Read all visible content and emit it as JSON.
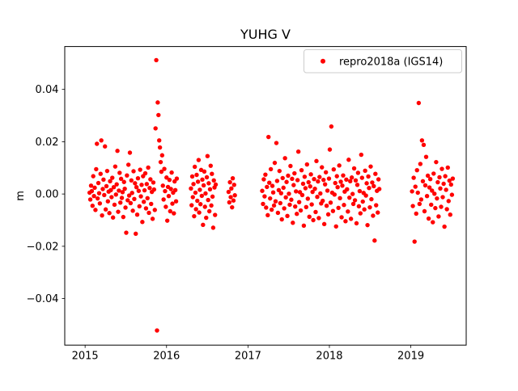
{
  "figure": {
    "background": "#ffffff",
    "frame_color": "#000000"
  },
  "chart_data": {
    "type": "scatter",
    "title": "YUHG V",
    "xlabel": "",
    "ylabel": "m",
    "series_name": "repro2018a (IGS14)",
    "marker_color": "#ff0000",
    "legend_position": "upper right",
    "grid": false,
    "xlim": [
      2014.75,
      2019.68
    ],
    "ylim": [
      -0.0578,
      0.0564
    ],
    "xticks": [
      2015,
      2016,
      2017,
      2018,
      2019
    ],
    "xtick_labels": [
      "2015",
      "2016",
      "2017",
      "2018",
      "2019"
    ],
    "yticks": [
      -0.04,
      -0.02,
      0.0,
      0.02,
      0.04
    ],
    "ytick_labels": [
      "−0.04",
      "−0.02",
      "0.00",
      "0.02",
      "0.04"
    ],
    "points": [
      [
        2015.055,
        0.0005
      ],
      [
        2015.064,
        -0.0021
      ],
      [
        2015.073,
        0.0032
      ],
      [
        2015.082,
        0.0011
      ],
      [
        2015.091,
        -0.0045
      ],
      [
        2015.1,
        0.0068
      ],
      [
        2015.109,
        -0.0008
      ],
      [
        2015.118,
        0.0024
      ],
      [
        2015.127,
        -0.0061
      ],
      [
        2015.136,
        0.0095
      ],
      [
        2015.145,
        0.0192
      ],
      [
        2015.154,
        -0.0017
      ],
      [
        2015.163,
        0.0042
      ],
      [
        2015.172,
        0.0003
      ],
      [
        2015.181,
        -0.0036
      ],
      [
        2015.19,
        0.0077
      ],
      [
        2015.199,
        0.0205
      ],
      [
        2015.208,
        -0.0082
      ],
      [
        2015.217,
        0.0019
      ],
      [
        2015.226,
        0.0055
      ],
      [
        2015.235,
        -0.0004
      ],
      [
        2015.244,
        0.0182
      ],
      [
        2015.253,
        -0.0059
      ],
      [
        2015.262,
        0.003
      ],
      [
        2015.271,
        0.0088
      ],
      [
        2015.28,
        -0.0028
      ],
      [
        2015.289,
        0.0009
      ],
      [
        2015.298,
        -0.0073
      ],
      [
        2015.307,
        0.0049
      ],
      [
        2015.316,
        0.0015
      ],
      [
        2015.325,
        -0.0012
      ],
      [
        2015.334,
        0.0062
      ],
      [
        2015.343,
        -0.009
      ],
      [
        2015.352,
        0.0026
      ],
      [
        2015.361,
        -0.0041
      ],
      [
        2015.37,
        0.0105
      ],
      [
        2015.379,
        -0.0002
      ],
      [
        2015.388,
        0.0037
      ],
      [
        2015.397,
        0.0165
      ],
      [
        2015.406,
        -0.0068
      ],
      [
        2015.415,
        0.0013
      ],
      [
        2015.424,
        0.0081
      ],
      [
        2015.433,
        -0.0033
      ],
      [
        2015.442,
        0.0058
      ],
      [
        2015.451,
        -0.0015
      ],
      [
        2015.46,
        0.0007
      ],
      [
        2015.469,
        -0.0088
      ],
      [
        2015.478,
        0.0046
      ],
      [
        2015.487,
        0.002
      ],
      [
        2015.496,
        -0.0052
      ],
      [
        2015.505,
        -0.0148
      ],
      [
        2015.514,
        0.0071
      ],
      [
        2015.523,
        -0.0024
      ],
      [
        2015.532,
        0.0112
      ],
      [
        2015.541,
        -0.0006
      ],
      [
        2015.55,
        0.0158
      ],
      [
        2015.559,
        -0.0035
      ],
      [
        2015.568,
        0.0052
      ],
      [
        2015.577,
        0.0004
      ],
      [
        2015.586,
        -0.0064
      ],
      [
        2015.595,
        0.0087
      ],
      [
        2015.604,
        -0.0019
      ],
      [
        2015.613,
        0.0041
      ],
      [
        2015.622,
        -0.0152
      ],
      [
        2015.631,
        0.0026
      ],
      [
        2015.64,
        -0.0079
      ],
      [
        2015.649,
        0.006
      ],
      [
        2015.658,
        0.0012
      ],
      [
        2015.667,
        -0.0047
      ],
      [
        2015.676,
        0.0093
      ],
      [
        2015.685,
        -0.0009
      ],
      [
        2015.694,
        0.0035
      ],
      [
        2015.703,
        -0.0107
      ],
      [
        2015.712,
        0.0068
      ],
      [
        2015.721,
        -0.003
      ],
      [
        2015.73,
        0.0014
      ],
      [
        2015.739,
        0.0079
      ],
      [
        2015.748,
        -0.0055
      ],
      [
        2015.757,
        0.0038
      ],
      [
        2015.766,
        -0.0016
      ],
      [
        2015.775,
        0.0101
      ],
      [
        2015.784,
        -0.0072
      ],
      [
        2015.793,
        0.0023
      ],
      [
        2015.802,
        0.0056
      ],
      [
        2015.811,
        -0.0038
      ],
      [
        2015.82,
        0.0008
      ],
      [
        2015.829,
        -0.0095
      ],
      [
        2015.838,
        0.0044
      ],
      [
        2015.847,
        0.0017
      ],
      [
        2015.856,
        -0.0061
      ],
      [
        2015.865,
        0.0251
      ],
      [
        2015.874,
        0.0512
      ],
      [
        2015.883,
        -0.0522
      ],
      [
        2015.892,
        0.035
      ],
      [
        2015.901,
        0.0302
      ],
      [
        2015.91,
        0.0205
      ],
      [
        2015.919,
        0.0178
      ],
      [
        2015.928,
        0.0122
      ],
      [
        2015.937,
        0.0085
      ],
      [
        2015.946,
        0.0148
      ],
      [
        2015.955,
        0.0032
      ],
      [
        2015.964,
        -0.0021
      ],
      [
        2015.973,
        0.0096
      ],
      [
        2015.982,
        0.0011
      ],
      [
        2015.991,
        -0.0049
      ],
      [
        2016.0,
        0.0063
      ],
      [
        2016.009,
        -0.0102
      ],
      [
        2016.018,
        0.0027
      ],
      [
        2016.027,
        -0.0008
      ],
      [
        2016.036,
        0.0054
      ],
      [
        2016.045,
        -0.0066
      ],
      [
        2016.054,
        0.0019
      ],
      [
        2016.063,
        0.0082
      ],
      [
        2016.072,
        -0.0037
      ],
      [
        2016.081,
        0.0005
      ],
      [
        2016.09,
        -0.0074
      ],
      [
        2016.099,
        0.0048
      ],
      [
        2016.108,
        0.0015
      ],
      [
        2016.117,
        -0.0028
      ],
      [
        2016.126,
        0.0059
      ],
      [
        2016.3,
        0.0021
      ],
      [
        2016.308,
        -0.0043
      ],
      [
        2016.316,
        0.0067
      ],
      [
        2016.323,
        -0.0012
      ],
      [
        2016.331,
        0.0038
      ],
      [
        2016.339,
        -0.0085
      ],
      [
        2016.347,
        0.0104
      ],
      [
        2016.355,
        0.0005
      ],
      [
        2016.362,
        -0.0058
      ],
      [
        2016.37,
        0.0073
      ],
      [
        2016.378,
        -0.0026
      ],
      [
        2016.386,
        0.0047
      ],
      [
        2016.394,
        0.013
      ],
      [
        2016.401,
        -0.0071
      ],
      [
        2016.409,
        0.0016
      ],
      [
        2016.417,
        -0.0039
      ],
      [
        2016.425,
        0.0092
      ],
      [
        2016.433,
        -0.0007
      ],
      [
        2016.44,
        0.0055
      ],
      [
        2016.448,
        -0.0118
      ],
      [
        2016.456,
        0.0033
      ],
      [
        2016.464,
        0.0086
      ],
      [
        2016.472,
        -0.0049
      ],
      [
        2016.479,
        0.0002
      ],
      [
        2016.487,
        -0.0091
      ],
      [
        2016.495,
        0.0064
      ],
      [
        2016.503,
        0.0145
      ],
      [
        2016.511,
        -0.0023
      ],
      [
        2016.518,
        0.0041
      ],
      [
        2016.526,
        -0.0066
      ],
      [
        2016.534,
        0.0018
      ],
      [
        2016.542,
        0.0108
      ],
      [
        2016.55,
        -0.0044
      ],
      [
        2016.557,
        0.0077
      ],
      [
        2016.565,
        -0.001
      ],
      [
        2016.573,
        -0.0129
      ],
      [
        2016.581,
        0.0052
      ],
      [
        2016.589,
        0.0025
      ],
      [
        2016.596,
        -0.008
      ],
      [
        2016.604,
        0.0036
      ],
      [
        2016.762,
        0.0008
      ],
      [
        2016.771,
        -0.0032
      ],
      [
        2016.779,
        0.0045
      ],
      [
        2016.788,
        -0.0012
      ],
      [
        2016.796,
        0.0021
      ],
      [
        2016.805,
        -0.0051
      ],
      [
        2016.813,
        0.006
      ],
      [
        2016.822,
        -0.0025
      ],
      [
        2016.83,
        0.0035
      ],
      [
        2016.839,
        -0.0005
      ],
      [
        2017.175,
        0.0012
      ],
      [
        2017.185,
        -0.0038
      ],
      [
        2017.194,
        0.0056
      ],
      [
        2017.204,
        -0.0009
      ],
      [
        2017.214,
        0.0074
      ],
      [
        2017.223,
        -0.0052
      ],
      [
        2017.233,
        0.0027
      ],
      [
        2017.243,
        -0.0081
      ],
      [
        2017.252,
        0.0218
      ],
      [
        2017.262,
        0.0043
      ],
      [
        2017.272,
        -0.0017
      ],
      [
        2017.281,
        0.0095
      ],
      [
        2017.291,
        -0.006
      ],
      [
        2017.3,
        0.0031
      ],
      [
        2017.31,
        0.0006
      ],
      [
        2017.32,
        -0.0044
      ],
      [
        2017.329,
        0.0119
      ],
      [
        2017.339,
        -0.0028
      ],
      [
        2017.349,
        0.0195
      ],
      [
        2017.358,
        0.005
      ],
      [
        2017.368,
        -0.0072
      ],
      [
        2017.378,
        0.0015
      ],
      [
        2017.387,
        0.0088
      ],
      [
        2017.397,
        -0.0035
      ],
      [
        2017.407,
        0.0003
      ],
      [
        2017.416,
        -0.0097
      ],
      [
        2017.426,
        0.0061
      ],
      [
        2017.436,
        0.0024
      ],
      [
        2017.445,
        -0.0055
      ],
      [
        2017.455,
        0.0137
      ],
      [
        2017.465,
        -0.0013
      ],
      [
        2017.474,
        0.0046
      ],
      [
        2017.484,
        -0.0084
      ],
      [
        2017.493,
        0.007
      ],
      [
        2017.503,
        0.0001
      ],
      [
        2017.513,
        -0.0041
      ],
      [
        2017.522,
        0.0107
      ],
      [
        2017.532,
        -0.0022
      ],
      [
        2017.542,
        0.0058
      ],
      [
        2017.551,
        -0.011
      ],
      [
        2017.561,
        0.0034
      ],
      [
        2017.571,
        0.0079
      ],
      [
        2017.58,
        -0.0048
      ],
      [
        2017.59,
        0.001
      ],
      [
        2017.6,
        -0.0076
      ],
      [
        2017.609,
        0.0053
      ],
      [
        2017.619,
        0.0162
      ],
      [
        2017.629,
        -0.0031
      ],
      [
        2017.638,
        0.0007
      ],
      [
        2017.648,
        -0.0063
      ],
      [
        2017.658,
        0.0091
      ],
      [
        2017.667,
        -0.0004
      ],
      [
        2017.677,
        0.0039
      ],
      [
        2017.686,
        -0.0121
      ],
      [
        2017.696,
        0.0066
      ],
      [
        2017.706,
        0.0022
      ],
      [
        2017.715,
        -0.005
      ],
      [
        2017.725,
        0.0113
      ],
      [
        2017.735,
        -0.0018
      ],
      [
        2017.744,
        0.0045
      ],
      [
        2017.754,
        -0.0087
      ],
      [
        2017.764,
        0.0029
      ],
      [
        2017.773,
        0.0075
      ],
      [
        2017.783,
        -0.004
      ],
      [
        2017.793,
        0.0008
      ],
      [
        2017.802,
        -0.01
      ],
      [
        2017.812,
        0.0057
      ],
      [
        2017.822,
        0.002
      ],
      [
        2017.831,
        -0.0069
      ],
      [
        2017.841,
        0.0126
      ],
      [
        2017.851,
        -0.0011
      ],
      [
        2017.86,
        0.0048
      ],
      [
        2017.87,
        -0.0092
      ],
      [
        2017.879,
        0.0065
      ],
      [
        2017.889,
        0.0002
      ],
      [
        2017.899,
        -0.0036
      ],
      [
        2017.908,
        0.0102
      ],
      [
        2017.918,
        -0.0026
      ],
      [
        2017.928,
        0.0054
      ],
      [
        2017.937,
        -0.0115
      ],
      [
        2017.947,
        0.0037
      ],
      [
        2017.957,
        0.0083
      ],
      [
        2017.966,
        -0.0045
      ],
      [
        2017.976,
        0.0013
      ],
      [
        2017.986,
        -0.0078
      ],
      [
        2017.995,
        0.0059
      ],
      [
        2018.005,
        0.017
      ],
      [
        2018.015,
        -0.0033
      ],
      [
        2018.024,
        0.0258
      ],
      [
        2018.034,
        0.0005
      ],
      [
        2018.044,
        -0.0065
      ],
      [
        2018.053,
        0.0094
      ],
      [
        2018.063,
        -0.0002
      ],
      [
        2018.072,
        0.0042
      ],
      [
        2018.082,
        -0.0124
      ],
      [
        2018.092,
        0.0068
      ],
      [
        2018.101,
        0.0026
      ],
      [
        2018.111,
        -0.0053
      ],
      [
        2018.121,
        0.0109
      ],
      [
        2018.13,
        -0.0016
      ],
      [
        2018.14,
        0.0047
      ],
      [
        2018.15,
        -0.0089
      ],
      [
        2018.159,
        0.0032
      ],
      [
        2018.169,
        0.0071
      ],
      [
        2018.179,
        -0.0042
      ],
      [
        2018.188,
        0.0009
      ],
      [
        2018.198,
        -0.0104
      ],
      [
        2018.208,
        0.0055
      ],
      [
        2018.217,
        0.0018
      ],
      [
        2018.227,
        -0.0067
      ],
      [
        2018.237,
        0.0131
      ],
      [
        2018.246,
        -0.0014
      ],
      [
        2018.256,
        0.0049
      ],
      [
        2018.265,
        -0.0095
      ],
      [
        2018.275,
        0.0063
      ],
      [
        2018.285,
        0.0
      ],
      [
        2018.294,
        -0.0038
      ],
      [
        2018.304,
        0.0098
      ],
      [
        2018.314,
        -0.0024
      ],
      [
        2018.323,
        0.0052
      ],
      [
        2018.333,
        -0.0112
      ],
      [
        2018.343,
        0.0035
      ],
      [
        2018.352,
        0.0081
      ],
      [
        2018.362,
        -0.0047
      ],
      [
        2018.372,
        0.0011
      ],
      [
        2018.381,
        -0.0074
      ],
      [
        2018.391,
        0.015
      ],
      [
        2018.401,
        0.0062
      ],
      [
        2018.41,
        -0.0029
      ],
      [
        2018.42,
        0.0004
      ],
      [
        2018.429,
        -0.0059
      ],
      [
        2018.439,
        0.0089
      ],
      [
        2018.449,
        -0.0006
      ],
      [
        2018.458,
        0.0041
      ],
      [
        2018.468,
        -0.0119
      ],
      [
        2018.478,
        0.0067
      ],
      [
        2018.487,
        0.0023
      ],
      [
        2018.497,
        -0.0051
      ],
      [
        2018.507,
        0.0105
      ],
      [
        2018.516,
        -0.002
      ],
      [
        2018.526,
        0.0044
      ],
      [
        2018.536,
        -0.0083
      ],
      [
        2018.545,
        0.003
      ],
      [
        2018.555,
        -0.0178
      ],
      [
        2018.565,
        0.0077
      ],
      [
        2018.574,
        -0.0043
      ],
      [
        2018.584,
        0.0012
      ],
      [
        2018.594,
        -0.0071
      ],
      [
        2018.603,
        0.0056
      ],
      [
        2018.613,
        0.0019
      ],
      [
        2019.015,
        0.001
      ],
      [
        2019.025,
        -0.0046
      ],
      [
        2019.035,
        0.0062
      ],
      [
        2019.046,
        -0.0182
      ],
      [
        2019.056,
        0.0028
      ],
      [
        2019.066,
        -0.0075
      ],
      [
        2019.076,
        0.0091
      ],
      [
        2019.086,
        0.0005
      ],
      [
        2019.097,
        0.0348
      ],
      [
        2019.107,
        -0.0038
      ],
      [
        2019.117,
        0.0115
      ],
      [
        2019.127,
        -0.0021
      ],
      [
        2019.137,
        0.0205
      ],
      [
        2019.148,
        0.0049
      ],
      [
        2019.158,
        0.0188
      ],
      [
        2019.168,
        -0.0066
      ],
      [
        2019.178,
        0.0033
      ],
      [
        2019.188,
        0.0142
      ],
      [
        2019.199,
        -0.0008
      ],
      [
        2019.209,
        0.007
      ],
      [
        2019.219,
        -0.0094
      ],
      [
        2019.229,
        0.0025
      ],
      [
        2019.239,
        0.0057
      ],
      [
        2019.25,
        -0.0041
      ],
      [
        2019.26,
        0.0013
      ],
      [
        2019.27,
        -0.0108
      ],
      [
        2019.28,
        0.0078
      ],
      [
        2019.29,
        0.0001
      ],
      [
        2019.301,
        -0.0054
      ],
      [
        2019.311,
        0.0122
      ],
      [
        2019.321,
        -0.0017
      ],
      [
        2019.331,
        0.0045
      ],
      [
        2019.341,
        -0.0086
      ],
      [
        2019.352,
        0.0064
      ],
      [
        2019.362,
        0.0021
      ],
      [
        2019.372,
        -0.0049
      ],
      [
        2019.382,
        0.0096
      ],
      [
        2019.392,
        -0.0012
      ],
      [
        2019.403,
        0.0039
      ],
      [
        2019.413,
        -0.0125
      ],
      [
        2019.423,
        0.0068
      ],
      [
        2019.433,
        0.0016
      ],
      [
        2019.443,
        -0.0058
      ],
      [
        2019.454,
        0.0101
      ],
      [
        2019.464,
        -0.0027
      ],
      [
        2019.474,
        0.0051
      ],
      [
        2019.484,
        -0.0079
      ],
      [
        2019.494,
        0.0036
      ],
      [
        2019.505,
        -0.0003
      ],
      [
        2019.515,
        0.0059
      ]
    ]
  }
}
